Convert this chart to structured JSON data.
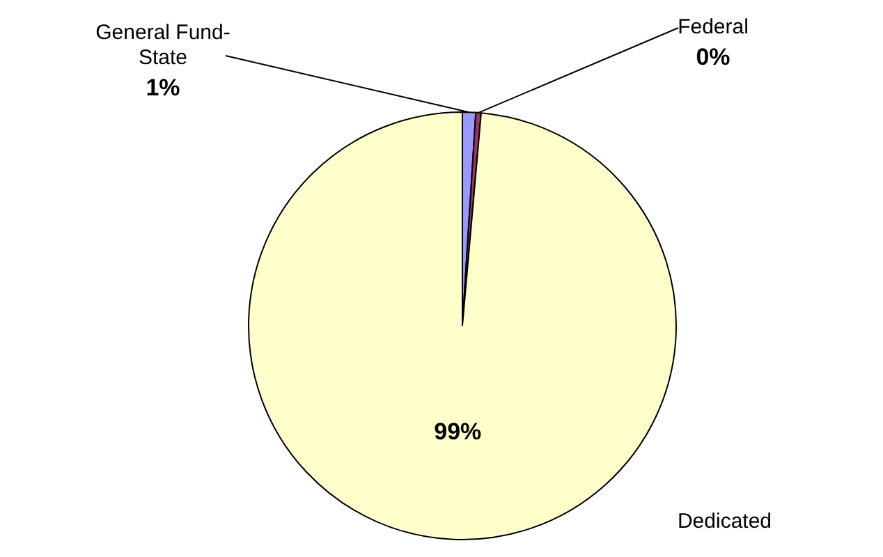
{
  "chart_data": {
    "type": "pie",
    "categories": [
      "General Fund-State",
      "Federal",
      "Dedicated"
    ],
    "values": [
      1,
      0.4,
      98.6
    ],
    "value_labels": [
      "1%",
      "0%",
      "99%"
    ],
    "colors": [
      "#9999ff",
      "#993366",
      "#ffffcc"
    ],
    "legend": false
  }
}
